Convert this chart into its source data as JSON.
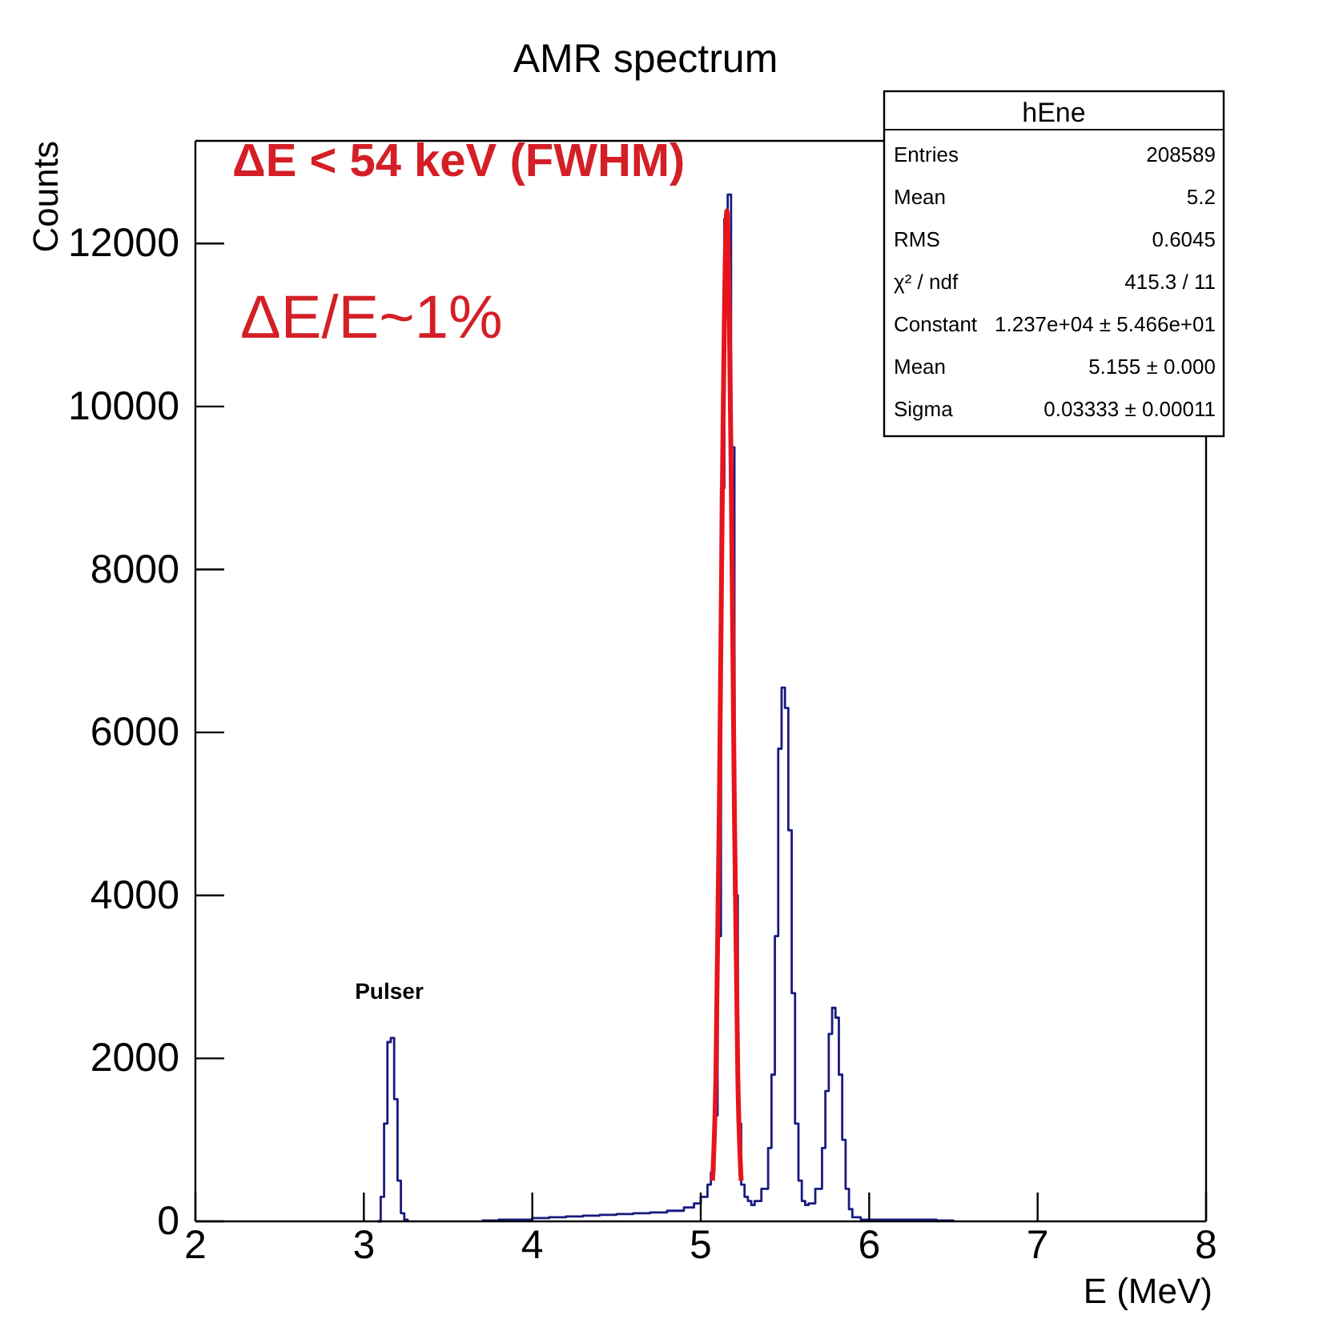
{
  "chart_data": {
    "type": "step",
    "title": "AMR spectrum",
    "xlabel": "E (MeV)",
    "ylabel": "Counts",
    "xlim": [
      2,
      8
    ],
    "ylim": [
      0,
      13260
    ],
    "xticks": [
      2,
      3,
      4,
      5,
      6,
      7,
      8
    ],
    "yticks": [
      0,
      2000,
      4000,
      6000,
      8000,
      10000,
      12000
    ],
    "series": [
      {
        "type": "step",
        "color": "#1a1a80",
        "x": [
          3.08,
          3.1,
          3.12,
          3.14,
          3.16,
          3.18,
          3.2,
          3.22,
          3.24,
          3.26,
          3.5,
          3.7,
          3.8,
          3.9,
          4.0,
          4.1,
          4.2,
          4.3,
          4.4,
          4.5,
          4.6,
          4.7,
          4.8,
          4.9,
          4.96,
          5.0,
          5.04,
          5.06,
          5.08,
          5.1,
          5.12,
          5.14,
          5.16,
          5.18,
          5.2,
          5.22,
          5.24,
          5.26,
          5.28,
          5.3,
          5.32,
          5.36,
          5.4,
          5.42,
          5.44,
          5.46,
          5.48,
          5.5,
          5.52,
          5.54,
          5.56,
          5.58,
          5.6,
          5.62,
          5.64,
          5.68,
          5.72,
          5.74,
          5.76,
          5.78,
          5.8,
          5.82,
          5.84,
          5.86,
          5.88,
          5.9,
          5.95,
          6.1,
          6.4,
          6.5
        ],
        "values": [
          0,
          300,
          1200,
          2200,
          2250,
          1500,
          500,
          100,
          20,
          0,
          null,
          10,
          20,
          20,
          40,
          50,
          60,
          70,
          80,
          90,
          100,
          110,
          130,
          170,
          220,
          300,
          450,
          600,
          1300,
          3500,
          9000,
          12300,
          12600,
          9500,
          4000,
          1200,
          450,
          300,
          250,
          200,
          250,
          400,
          900,
          1800,
          3500,
          5800,
          6550,
          6300,
          4800,
          2800,
          1200,
          500,
          250,
          200,
          220,
          400,
          900,
          1600,
          2300,
          2620,
          2500,
          1800,
          1000,
          400,
          150,
          50,
          20,
          20,
          10,
          0
        ]
      },
      {
        "type": "line",
        "color": "#e8141c",
        "x": [
          5.07,
          5.09,
          5.11,
          5.13,
          5.155,
          5.18,
          5.2,
          5.22,
          5.24
        ],
        "values": [
          500,
          1800,
          5000,
          9300,
          12400,
          9300,
          5000,
          1800,
          500
        ]
      }
    ],
    "annotations": [
      "ΔE < 54 keV (FWHM)",
      "ΔE/E~1%",
      "Pulser",
      "hEne",
      "Entries",
      "208589",
      "Mean",
      "5.2",
      "RMS",
      "0.6045",
      "χ² / ndf",
      "415.3 / 11",
      "Constant",
      "1.237e+04 ± 5.466e+01",
      "Mean",
      "5.155 ± 0.000",
      "Sigma",
      "0.03333 ± 0.00011"
    ]
  }
}
